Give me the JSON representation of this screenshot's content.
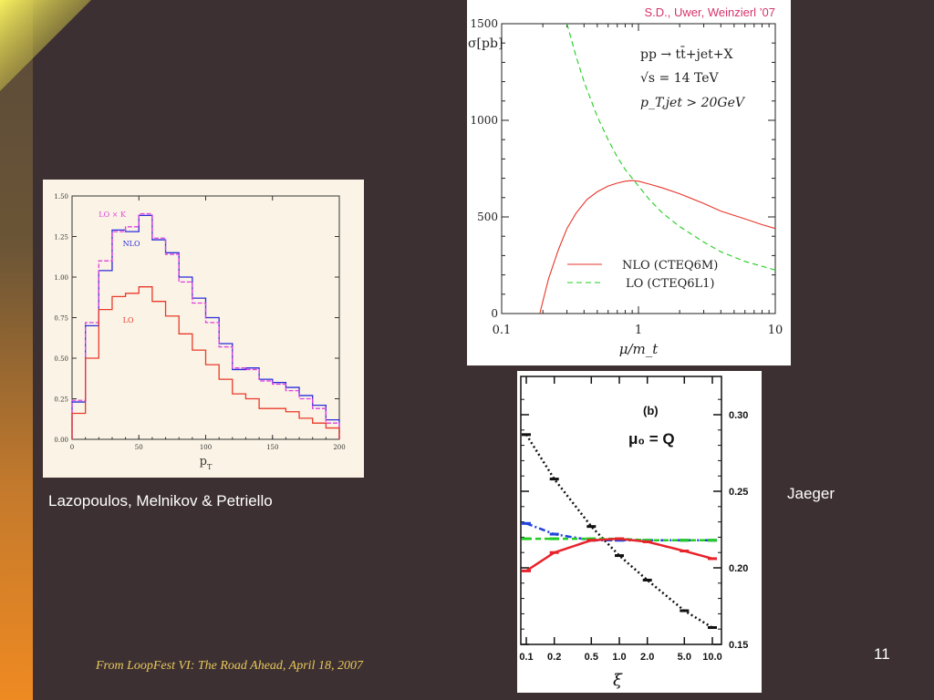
{
  "slide": {
    "page_number": "11",
    "footer": "From LoopFest VI: The Road Ahead,  April 18, 2007",
    "caption_left": "Lazopoulos, Melnikov & Petriello",
    "caption_right": "Jaeger"
  },
  "chart_data": [
    {
      "type": "line",
      "step": true,
      "xlabel": "p_T",
      "xticks": [
        "0",
        "50",
        "100",
        "150",
        "200"
      ],
      "yticks": [
        "0.00",
        "0.25",
        "0.50",
        "0.75",
        "1.00",
        "1.25",
        "1.50"
      ],
      "xlim": [
        0,
        200
      ],
      "ylim": [
        0,
        1.5
      ],
      "annotations": [
        "LO × K",
        "NLO",
        "LO"
      ],
      "bin_edges": [
        0,
        10,
        20,
        30,
        40,
        50,
        60,
        70,
        80,
        90,
        100,
        110,
        120,
        130,
        140,
        150,
        160,
        170,
        180,
        190,
        200
      ],
      "series": [
        {
          "name": "NLO",
          "color": "#2b2bdc",
          "values": [
            0.23,
            0.7,
            1.04,
            1.29,
            1.28,
            1.38,
            1.23,
            1.15,
            1.0,
            0.87,
            0.75,
            0.59,
            0.43,
            0.44,
            0.37,
            0.35,
            0.32,
            0.27,
            0.21,
            0.12
          ]
        },
        {
          "name": "LO × K",
          "color": "#e040e0",
          "values": [
            0.24,
            0.72,
            1.1,
            1.28,
            1.31,
            1.39,
            1.24,
            1.14,
            0.97,
            0.84,
            0.72,
            0.57,
            0.44,
            0.43,
            0.36,
            0.34,
            0.3,
            0.25,
            0.19,
            0.1
          ]
        },
        {
          "name": "LO",
          "color": "#e83a2a",
          "values": [
            0.16,
            0.5,
            0.8,
            0.88,
            0.9,
            0.94,
            0.85,
            0.76,
            0.65,
            0.55,
            0.46,
            0.37,
            0.28,
            0.25,
            0.19,
            0.19,
            0.17,
            0.13,
            0.1,
            0.07
          ]
        }
      ]
    },
    {
      "type": "line",
      "source": "S.D., Uwer, Weinzierl ’07",
      "ylabel": "σ[pb]",
      "xlabel": "μ/m_t",
      "xscale": "log",
      "xlim": [
        0.1,
        10
      ],
      "ylim": [
        0,
        1500
      ],
      "xticks": [
        "0.1",
        "1",
        "10"
      ],
      "yticks": [
        "0",
        "500",
        "1000",
        "1500"
      ],
      "annotations": [
        "pp → tt̄+jet+X",
        "√s = 14 TeV",
        "p_T,jet > 20GeV"
      ],
      "legend": "bottom-left",
      "series": [
        {
          "name": "NLO (CTEQ6M)",
          "color": "#e8362a",
          "style": "solid",
          "x": [
            0.19,
            0.22,
            0.26,
            0.3,
            0.35,
            0.42,
            0.5,
            0.6,
            0.7,
            0.8,
            0.9,
            1.0,
            1.2,
            1.5,
            2,
            3,
            4,
            6,
            8,
            10
          ],
          "y": [
            0,
            180,
            330,
            440,
            520,
            590,
            630,
            660,
            675,
            685,
            688,
            685,
            670,
            650,
            620,
            570,
            530,
            490,
            460,
            440
          ]
        },
        {
          "name": "LO (CTEQ6L1)",
          "color": "#22cc22",
          "style": "dashed",
          "x": [
            0.3,
            0.35,
            0.4,
            0.5,
            0.6,
            0.7,
            0.8,
            1.0,
            1.2,
            1.5,
            2,
            3,
            4,
            6,
            8,
            10
          ],
          "y": [
            1500,
            1330,
            1200,
            1020,
            900,
            810,
            745,
            660,
            590,
            520,
            450,
            370,
            320,
            270,
            245,
            225
          ]
        }
      ]
    },
    {
      "type": "line",
      "panel_label": "(b)",
      "annotations": [
        "μ₀ = Q"
      ],
      "xlabel": "ξ",
      "xscale": "log",
      "xticks": [
        "0.1",
        "0.2",
        "0.5",
        "1.0",
        "2.0",
        "5.0",
        "10.0"
      ],
      "yticks": [
        "0.15",
        "0.20",
        "0.25",
        "0.30"
      ],
      "xlim": [
        0.1,
        10
      ],
      "ylim": [
        0.15,
        0.325
      ],
      "series": [
        {
          "color": "#111111",
          "style": "dotted",
          "x": [
            0.1,
            0.2,
            0.5,
            1.0,
            2.0,
            5.0,
            10.0
          ],
          "y": [
            0.287,
            0.258,
            0.227,
            0.208,
            0.192,
            0.172,
            0.161
          ]
        },
        {
          "color": "#2244dd",
          "style": "dashdot",
          "x": [
            0.1,
            0.2,
            0.5,
            1.0,
            2.0,
            5.0,
            10.0
          ],
          "y": [
            0.229,
            0.222,
            0.218,
            0.218,
            0.218,
            0.218,
            0.218
          ]
        },
        {
          "color": "#22cc22",
          "style": "dashed",
          "x": [
            0.1,
            0.2,
            0.5,
            1.0,
            2.0,
            5.0,
            10.0
          ],
          "y": [
            0.219,
            0.219,
            0.219,
            0.219,
            0.218,
            0.218,
            0.218
          ]
        },
        {
          "color": "#e8222a",
          "style": "solid",
          "x": [
            0.1,
            0.2,
            0.5,
            1.0,
            2.0,
            5.0,
            10.0
          ],
          "y": [
            0.198,
            0.21,
            0.218,
            0.219,
            0.217,
            0.211,
            0.206
          ]
        }
      ]
    }
  ]
}
